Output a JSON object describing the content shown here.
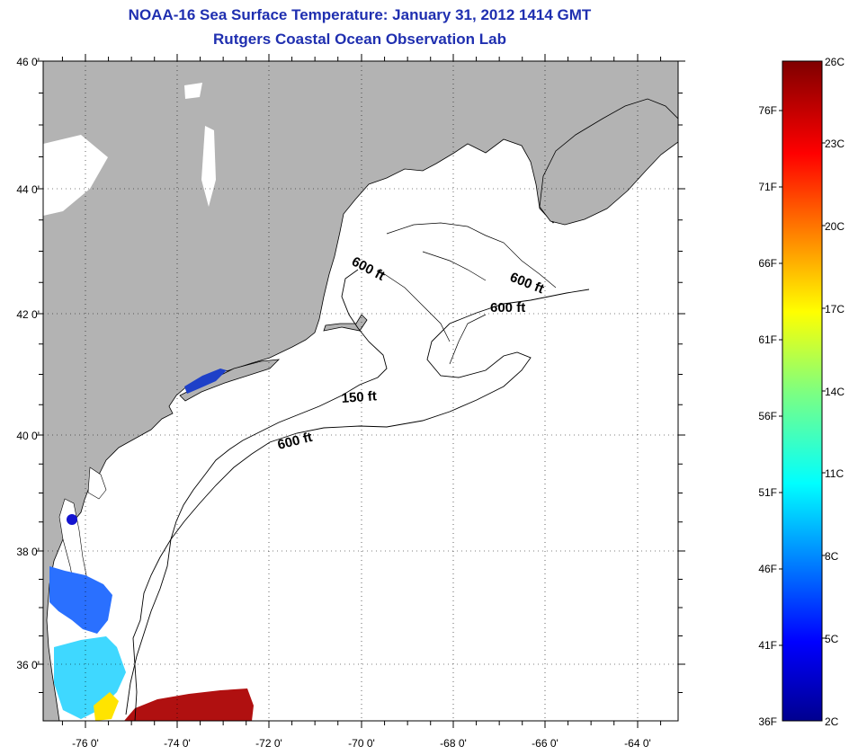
{
  "title": {
    "line1": "NOAA-16 Sea Surface Temperature:  January 31, 2012 1414 GMT",
    "line2": "Rutgers Coastal Ocean Observation Lab"
  },
  "latitude_ticks": [
    "46 0'",
    "44 0'",
    "42 0'",
    "40 0'",
    "38 0'",
    "36 0'"
  ],
  "longitude_ticks": [
    "-76 0'",
    "-74 0'",
    "-72 0'",
    "-70 0'",
    "-68 0'",
    "-66 0'",
    "-64 0'"
  ],
  "contour_labels": [
    "600 ft",
    "600 ft",
    "600 ft",
    "150 ft",
    "600 ft"
  ],
  "colorbar": {
    "fahrenheit_labels": [
      "76F",
      "71F",
      "66F",
      "61F",
      "56F",
      "51F",
      "46F",
      "41F",
      "36F"
    ],
    "celsius_labels": [
      "26C",
      "23C",
      "20C",
      "17C",
      "14C",
      "11C",
      "8C",
      "5C",
      "2C"
    ],
    "range_celsius": [
      2,
      26
    ],
    "colormap": "jet"
  },
  "colors": {
    "land": "#b3b3b3",
    "ocean_no_data": "#ffffff",
    "title": "#1f2fb0",
    "grid": "#000000"
  }
}
